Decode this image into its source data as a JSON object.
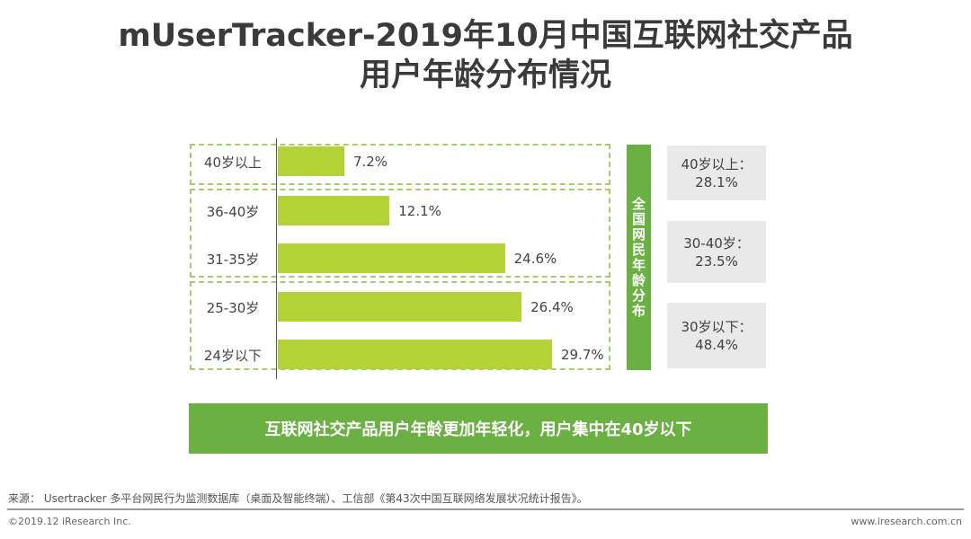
{
  "title": {
    "line1": "mUserTracker-2019年10月中国互联网社交产品",
    "line2": "用户年龄分布情况"
  },
  "chart_data": {
    "type": "bar",
    "orientation": "horizontal",
    "title": "mUserTracker-2019年10月中国互联网社交产品用户年龄分布情况",
    "categories": [
      "40岁以上",
      "36-40岁",
      "31-35岁",
      "25-30岁",
      "24岁以下"
    ],
    "values": [
      7.2,
      12.1,
      24.6,
      26.4,
      29.7
    ],
    "value_labels": [
      "7.2%",
      "12.1%",
      "24.6%",
      "26.4%",
      "29.7%"
    ],
    "unit": "%",
    "xlim": [
      0,
      29.7
    ],
    "grid": false,
    "groups": [
      {
        "members": [
          "40岁以上"
        ]
      },
      {
        "members": [
          "36-40岁",
          "31-35岁"
        ]
      },
      {
        "members": [
          "25-30岁",
          "24岁以下"
        ]
      }
    ],
    "bar_color": "#b2d235"
  },
  "national": {
    "label": "全国网民年龄分布",
    "items": [
      {
        "label": "40岁以上：",
        "value": "28.1%"
      },
      {
        "label": "30-40岁：",
        "value": "23.5%"
      },
      {
        "label": "30岁以下：",
        "value": "48.4%"
      }
    ]
  },
  "conclusion": "互联网社交产品用户年龄更加年轻化，用户集中在40岁以下",
  "footer": {
    "source": "来源： Usertracker 多平台网民行为监测数据库（桌面及智能终端）、工信部《第43次中国互联网络发展状况统计报告》。",
    "copyright": "©2019.12 iResearch Inc.",
    "website": "www.iresearch.com.cn"
  },
  "colors": {
    "accent_green": "#6ab043",
    "bar_green": "#b2d235",
    "dash_green": "#a9cc6a",
    "gray_box": "#e9e9e9"
  }
}
